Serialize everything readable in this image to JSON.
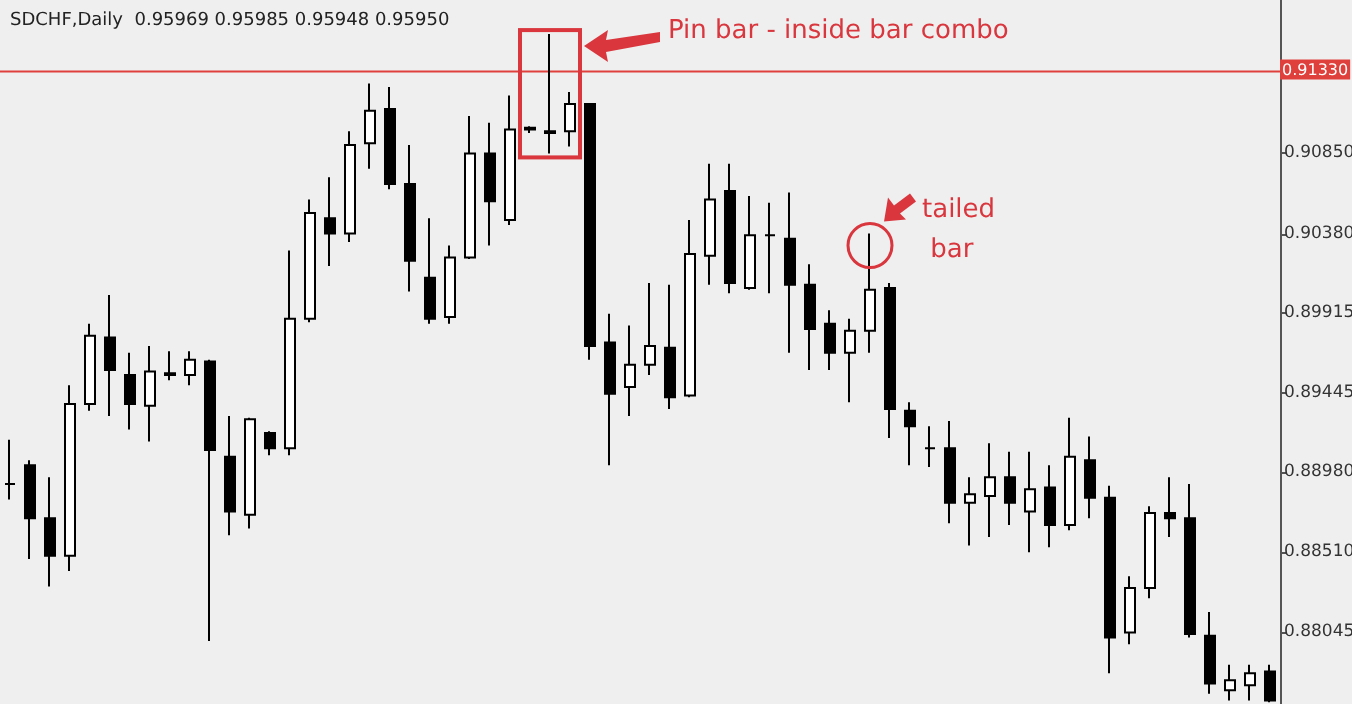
{
  "chart_data": {
    "type": "candlestick",
    "title": "SDCHF,Daily  0.95969 0.95985 0.95948 0.95950",
    "categories": [
      null,
      null,
      null,
      null,
      null,
      null,
      null,
      null,
      null,
      null,
      null,
      null,
      null,
      null,
      null,
      null,
      null,
      null,
      null,
      null,
      null,
      null,
      null,
      null,
      null,
      null,
      null,
      null,
      null,
      null,
      null,
      null,
      null,
      null,
      null,
      null,
      null,
      null,
      null,
      null,
      null,
      null,
      null,
      null,
      null,
      null,
      null,
      null,
      null,
      null,
      null,
      null,
      null,
      null,
      null,
      null,
      null,
      null,
      null,
      null,
      null,
      null,
      null,
      null
    ],
    "ohlc": [
      [
        0.8891,
        0.8917,
        0.8882,
        0.8891
      ],
      [
        0.8902,
        0.8905,
        0.8847,
        0.8871
      ],
      [
        0.8871,
        0.8895,
        0.8831,
        0.8849
      ],
      [
        0.8849,
        0.8949,
        0.884,
        0.8938
      ],
      [
        0.8938,
        0.8985,
        0.8934,
        0.8978
      ],
      [
        0.8977,
        0.9002,
        0.8931,
        0.8958
      ],
      [
        0.8955,
        0.8968,
        0.8923,
        0.8938
      ],
      [
        0.8937,
        0.8972,
        0.8916,
        0.8957
      ],
      [
        0.8956,
        0.8969,
        0.8952,
        0.8955
      ],
      [
        0.8955,
        0.8969,
        0.8949,
        0.8964
      ],
      [
        0.8963,
        0.8964,
        0.8799,
        0.8911
      ],
      [
        0.8907,
        0.8931,
        0.8861,
        0.8875
      ],
      [
        0.8873,
        0.893,
        0.8865,
        0.8929
      ],
      [
        0.8921,
        0.8922,
        0.8908,
        0.8912
      ],
      [
        0.8912,
        0.9028,
        0.8908,
        0.8988
      ],
      [
        0.8988,
        0.9058,
        0.8986,
        0.905
      ],
      [
        0.9047,
        0.9071,
        0.9019,
        0.9038
      ],
      [
        0.9038,
        0.9098,
        0.9033,
        0.909
      ],
      [
        0.9091,
        0.9126,
        0.9076,
        0.911
      ],
      [
        0.9111,
        0.9124,
        0.9064,
        0.9067
      ],
      [
        0.9067,
        0.909,
        0.9004,
        0.9022
      ],
      [
        0.9012,
        0.9047,
        0.8985,
        0.8988
      ],
      [
        0.8989,
        0.9031,
        0.8985,
        0.9024
      ],
      [
        0.9024,
        0.9107,
        0.9023,
        0.9085
      ],
      [
        0.9085,
        0.9103,
        0.9031,
        0.9057
      ],
      [
        0.9046,
        0.9119,
        0.9043,
        0.9099
      ],
      [
        0.91,
        0.9101,
        0.9097,
        0.9099
      ],
      [
        0.9098,
        0.9155,
        0.9085,
        0.9097
      ],
      [
        0.9098,
        0.9121,
        0.9089,
        0.9114
      ],
      [
        0.9114,
        0.9114,
        0.8964,
        0.8972
      ],
      [
        0.8974,
        0.8991,
        0.8902,
        0.8944
      ],
      [
        0.8948,
        0.8984,
        0.8931,
        0.8961
      ],
      [
        0.8961,
        0.9009,
        0.8955,
        0.8972
      ],
      [
        0.8971,
        0.9008,
        0.8935,
        0.8942
      ],
      [
        0.8943,
        0.9046,
        0.8942,
        0.9026
      ],
      [
        0.9025,
        0.9079,
        0.9008,
        0.9058
      ],
      [
        0.9063,
        0.9079,
        0.9003,
        0.9009
      ],
      [
        0.9006,
        0.906,
        0.9005,
        0.9037
      ],
      [
        0.9037,
        0.9056,
        0.9003,
        0.9037
      ],
      [
        0.9035,
        0.9062,
        0.8968,
        0.9008
      ],
      [
        0.9008,
        0.902,
        0.8958,
        0.8982
      ],
      [
        0.8985,
        0.8993,
        0.8958,
        0.8968
      ],
      [
        0.8968,
        0.8988,
        0.8939,
        0.8981
      ],
      [
        0.8981,
        0.9038,
        0.8968,
        0.9005
      ],
      [
        0.9006,
        0.9009,
        0.8918,
        0.8935
      ],
      [
        0.8934,
        0.8939,
        0.8902,
        0.8925
      ],
      [
        0.8912,
        0.8925,
        0.8901,
        0.8912
      ],
      [
        0.8912,
        0.8928,
        0.8868,
        0.888
      ],
      [
        0.888,
        0.8895,
        0.8855,
        0.8885
      ],
      [
        0.8884,
        0.8915,
        0.886,
        0.8895
      ],
      [
        0.8895,
        0.891,
        0.8867,
        0.888
      ],
      [
        0.8875,
        0.891,
        0.8851,
        0.8888
      ],
      [
        0.8889,
        0.8902,
        0.8854,
        0.8867
      ],
      [
        0.8867,
        0.893,
        0.8864,
        0.8907
      ],
      [
        0.8905,
        0.8919,
        0.8871,
        0.8883
      ],
      [
        0.8883,
        0.889,
        0.878,
        0.8801
      ],
      [
        0.8804,
        0.8837,
        0.8797,
        0.883
      ],
      [
        0.883,
        0.8878,
        0.8824,
        0.8874
      ],
      [
        0.8874,
        0.8895,
        0.886,
        0.8871
      ],
      [
        0.8871,
        0.8891,
        0.8801,
        0.8803
      ],
      [
        0.8802,
        0.8816,
        0.8768,
        0.8774
      ],
      [
        0.877,
        0.8785,
        0.8764,
        0.8776
      ],
      [
        0.8773,
        0.8785,
        0.8764,
        0.878
      ],
      [
        0.8781,
        0.8785,
        0.8763,
        0.8764
      ]
    ],
    "ylim": [
      0.8762,
      0.9175
    ],
    "yticks": [
      {
        "value": 0.9085,
        "label": "0.90850"
      },
      {
        "value": 0.9038,
        "label": "0.90380"
      },
      {
        "value": 0.89915,
        "label": "0.89915"
      },
      {
        "value": 0.89445,
        "label": "0.89445"
      },
      {
        "value": 0.8898,
        "label": "0.88980"
      },
      {
        "value": 0.8851,
        "label": "0.88510"
      },
      {
        "value": 0.88045,
        "label": "0.88045"
      }
    ],
    "tick_labels": "y",
    "grid": false,
    "ref_lines": [
      {
        "axis": "y",
        "value": 0.9133,
        "label": "0.91330",
        "color": "#e0403c"
      }
    ],
    "annotations": [
      "Pin bar - inside bar combo",
      "tailed bar"
    ]
  }
}
